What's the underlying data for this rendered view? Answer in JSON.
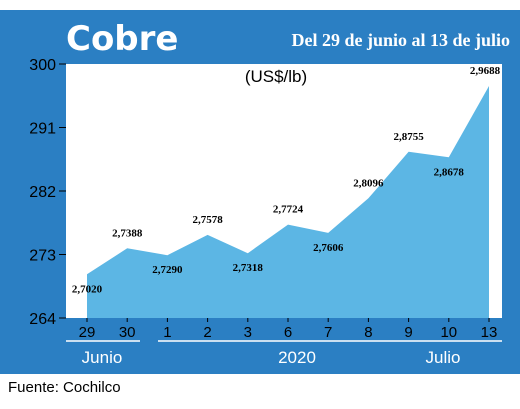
{
  "header": {
    "title": "Cobre",
    "subtitle": "Del 29 de junio al 13 de julio"
  },
  "source": "Fuente: Cochilco",
  "x_groups": {
    "month1": "Junio",
    "year": "2020",
    "month2": "Julio"
  },
  "colors": {
    "frame": "#2b7fc3",
    "area": "#5cb6e4",
    "plot_bg": "#ffffff"
  },
  "chart_data": {
    "type": "area",
    "unit_label": "(US$/lb)",
    "categories": [
      "29",
      "30",
      "1",
      "2",
      "3",
      "6",
      "7",
      "8",
      "9",
      "10",
      "13"
    ],
    "values": [
      2.702,
      2.7388,
      2.729,
      2.7578,
      2.7318,
      2.7724,
      2.7606,
      2.8096,
      2.8755,
      2.8678,
      2.9688
    ],
    "value_labels": [
      "2,7020",
      "2,7388",
      "2,7290",
      "2,7578",
      "2,7318",
      "2,7724",
      "2,7606",
      "2,8096",
      "2,8755",
      "2,8678",
      "2,9688"
    ],
    "y_ticks": [
      "264",
      "273",
      "282",
      "291",
      "300"
    ],
    "ylim": [
      2.64,
      3.0
    ],
    "grid": false
  }
}
